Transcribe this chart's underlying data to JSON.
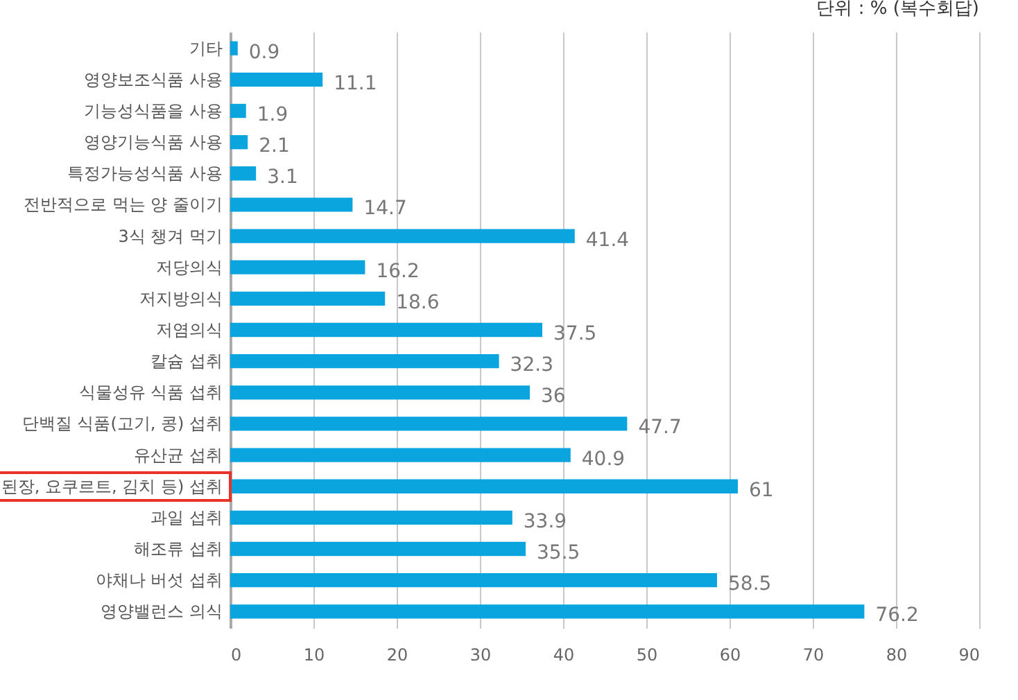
{
  "chart_data": {
    "type": "bar",
    "orientation": "horizontal",
    "annotations": [
      "단위 : % (복수회답)"
    ],
    "categories": [
      "기타",
      "영양보조식품 사용",
      "기능성식품을 사용",
      "영양기능식품 사용",
      "특정가능성식품 사용",
      "전반적으로 먹는 양 줄이기",
      "3식 챙겨 먹기",
      "저당의식",
      "저지방의식",
      "저염의식",
      "칼슘 섭취",
      "식물성유 식품 섭취",
      "단백질 식품(고기, 콩) 섭취",
      "유산균 섭취",
      "된장, 요쿠르트, 김치 등) 섭취",
      "과일 섭취",
      "해조류 섭취",
      "야채나 버섯 섭취",
      "영양밸런스 의식"
    ],
    "values": [
      0.9,
      11.1,
      1.9,
      2.1,
      3.1,
      14.7,
      41.4,
      16.2,
      18.6,
      37.5,
      32.3,
      36,
      47.7,
      40.9,
      61,
      33.9,
      35.5,
      58.5,
      76.2
    ],
    "color": "#0aa5df",
    "xlim": [
      0,
      90
    ],
    "xticks": [
      0,
      10,
      20,
      30,
      40,
      50,
      60,
      70,
      80,
      90
    ],
    "grid": "x",
    "data_labels": true
  }
}
